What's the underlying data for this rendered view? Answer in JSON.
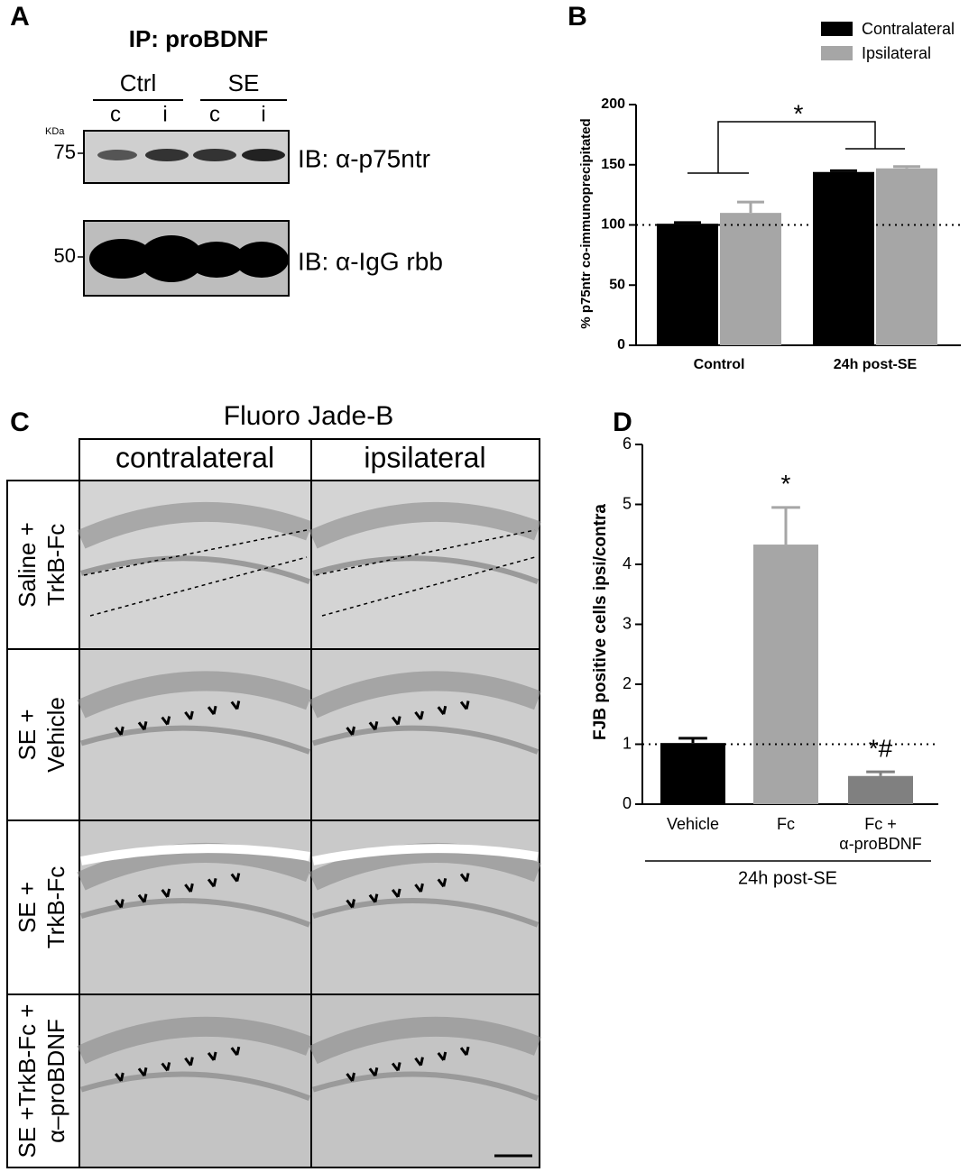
{
  "panel_labels": [
    "A",
    "B",
    "C",
    "D"
  ],
  "panel_a": {
    "title": "IP: proBDNF",
    "groups": [
      "Ctrl",
      "SE"
    ],
    "lanes": [
      "c",
      "i",
      "c",
      "i"
    ],
    "unit": "KDa",
    "markers": [
      "75",
      "50"
    ],
    "blots": [
      "IB: α-p75ntr",
      "IB: α-IgG rbb"
    ]
  },
  "panel_c": {
    "title": "Fluoro Jade-B",
    "columns": [
      "contralateral",
      "ipsilateral"
    ],
    "rows": [
      "Saline +\nTrkB-Fc",
      "SE +\nVehicle",
      "SE +\nTrkB-Fc",
      "SE +TrkB-Fc +\nα–proBDNF"
    ]
  },
  "chart_data": [
    {
      "type": "bar",
      "ylabel": "% p75ntr co-immunoprecipitated",
      "categories": [
        "Control",
        "24h post-SE"
      ],
      "series": [
        {
          "name": "Contralateral",
          "color": "#000000",
          "values": [
            101,
            144
          ],
          "errors": [
            1,
            1
          ]
        },
        {
          "name": "Ipsilateral",
          "color": "#a6a6a6",
          "values": [
            110,
            147
          ],
          "errors": [
            9,
            1.5
          ]
        }
      ],
      "ylim": [
        0,
        200
      ],
      "yticks": [
        0,
        50,
        100,
        150,
        200
      ],
      "reference_line": 100,
      "legend": "top right",
      "annotations": [
        "*"
      ]
    },
    {
      "type": "bar",
      "ylabel": "FJB positive cells ipsi/contra",
      "xlabel": "24h post-SE",
      "categories": [
        "Vehicle",
        "Fc",
        "Fc +\nα-proBDNF"
      ],
      "values": [
        1.02,
        4.33,
        0.47
      ],
      "errors": [
        0.08,
        0.62,
        0.07
      ],
      "colors": [
        "#000000",
        "#a6a6a6",
        "#808080"
      ],
      "ylim": [
        0,
        6
      ],
      "yticks": [
        0,
        1,
        2,
        3,
        4,
        5,
        6
      ],
      "reference_line": 1,
      "annotations": [
        "*",
        "*#"
      ]
    }
  ]
}
